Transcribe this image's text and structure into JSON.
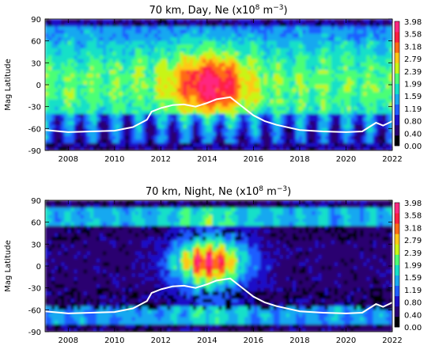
{
  "chart_data": [
    {
      "type": "heatmap",
      "title": "70 km, Day, Ne (x10",
      "title_exp": "8",
      "title_unit": " m",
      "title_unit_exp": "−3",
      "title_close": ")",
      "ylabel": "Mag Latitude",
      "xlim": [
        2007,
        2022
      ],
      "ylim": [
        -90,
        90
      ],
      "x_ticks": [
        "2008",
        "2010",
        "2012",
        "2014",
        "2016",
        "2018",
        "2020",
        "2022"
      ],
      "y_ticks": [
        "90",
        "60",
        "30",
        "0",
        "-30",
        "-60",
        "-90"
      ],
      "colorbar_ticks": [
        "3.98",
        "3.58",
        "3.18",
        "2.79",
        "2.39",
        "1.99",
        "1.59",
        "1.19",
        "0.80",
        "0.40",
        "0.00"
      ],
      "white_line": {
        "x": [
          2007.0,
          2008.0,
          2009.0,
          2010.0,
          2010.8,
          2011.4,
          2011.6,
          2012.0,
          2012.5,
          2013.0,
          2013.5,
          2014.0,
          2014.4,
          2014.8,
          2015.0,
          2015.4,
          2016.0,
          2016.5,
          2017.0,
          2018.0,
          2019.0,
          2020.0,
          2020.7,
          2021.0,
          2021.3,
          2021.6,
          2022.0
        ],
        "y": [
          -62,
          -65,
          -64,
          -63,
          -58,
          -48,
          -37,
          -32,
          -28,
          -27,
          -30,
          -25,
          -20,
          -18,
          -17,
          -27,
          -42,
          -50,
          -55,
          -62,
          -64,
          -65,
          -64,
          -58,
          -52,
          -56,
          -50
        ]
      }
    },
    {
      "type": "heatmap",
      "title": "70 km, Night, Ne (x10",
      "title_exp": "8",
      "title_unit": " m",
      "title_unit_exp": "−3",
      "title_close": ")",
      "ylabel": "Mag Latitude",
      "xlim": [
        2007,
        2022
      ],
      "ylim": [
        -90,
        90
      ],
      "x_ticks": [
        "2008",
        "2010",
        "2012",
        "2014",
        "2016",
        "2018",
        "2020",
        "2022"
      ],
      "y_ticks": [
        "90",
        "60",
        "30",
        "0",
        "-30",
        "-60",
        "-90"
      ],
      "colorbar_ticks": [
        "3.98",
        "3.58",
        "3.18",
        "2.79",
        "2.39",
        "1.99",
        "1.59",
        "1.19",
        "0.80",
        "0.40",
        "0.00"
      ],
      "white_line": {
        "x": [
          2007.0,
          2008.0,
          2009.0,
          2010.0,
          2010.8,
          2011.4,
          2011.6,
          2012.0,
          2012.5,
          2013.0,
          2013.5,
          2014.0,
          2014.4,
          2014.8,
          2015.0,
          2015.4,
          2016.0,
          2016.5,
          2017.0,
          2018.0,
          2019.0,
          2020.0,
          2020.7,
          2021.0,
          2021.3,
          2021.6,
          2022.0
        ],
        "y": [
          -62,
          -65,
          -64,
          -63,
          -58,
          -48,
          -37,
          -32,
          -28,
          -27,
          -30,
          -25,
          -20,
          -18,
          -17,
          -27,
          -42,
          -50,
          -55,
          -62,
          -64,
          -65,
          -64,
          -58,
          -52,
          -56,
          -50
        ]
      }
    }
  ],
  "colors": {
    "scale": [
      "#000000",
      "#2a0070",
      "#1e10c8",
      "#1f5dff",
      "#19a8f0",
      "#14e0c8",
      "#4cff74",
      "#c8f514",
      "#ffc814",
      "#ff6a14",
      "#ff2040",
      "#ff2880"
    ],
    "line": "#ffffff"
  }
}
